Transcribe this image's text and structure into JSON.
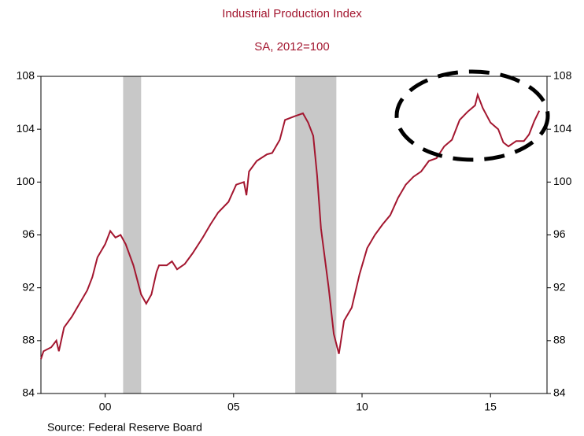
{
  "chart_data": {
    "type": "line",
    "title": "Industrial Production Index",
    "subtitle": "SA, 2012=100",
    "source": "Source:  Federal Reserve Board",
    "color": "#a3162f",
    "shade_color": "#c8c8c8",
    "shaded": [
      [
        2001.2,
        2001.9
      ],
      [
        2007.9,
        2009.5
      ]
    ],
    "x": [
      1998.0,
      1998.1,
      1998.4,
      1998.6,
      1998.7,
      1998.9,
      1999.2,
      1999.5,
      1999.8,
      2000.0,
      2000.2,
      2000.5,
      2000.7,
      2000.9,
      2001.1,
      2001.3,
      2001.6,
      2001.9,
      2002.1,
      2002.3,
      2002.5,
      2002.6,
      2002.9,
      2003.1,
      2003.3,
      2003.6,
      2003.9,
      2004.3,
      2004.6,
      2004.9,
      2005.3,
      2005.6,
      2005.9,
      2006.0,
      2006.1,
      2006.4,
      2006.8,
      2007.0,
      2007.3,
      2007.5,
      2007.9,
      2008.2,
      2008.4,
      2008.6,
      2008.75,
      2008.9,
      2009.2,
      2009.4,
      2009.6,
      2009.8,
      2010.1,
      2010.4,
      2010.7,
      2011.0,
      2011.3,
      2011.6,
      2011.9,
      2012.2,
      2012.5,
      2012.8,
      2013.1,
      2013.4,
      2013.7,
      2014.0,
      2014.3,
      2014.6,
      2014.9,
      2015.0,
      2015.2,
      2015.5,
      2015.8,
      2016.0,
      2016.2,
      2016.5,
      2016.8,
      2017.0,
      2017.2,
      2017.4
    ],
    "values": [
      86.6,
      87.2,
      87.5,
      88.0,
      87.2,
      89.0,
      89.8,
      90.8,
      91.8,
      92.8,
      94.3,
      95.3,
      96.3,
      95.8,
      96.0,
      95.3,
      93.7,
      91.5,
      90.8,
      91.5,
      93.2,
      93.7,
      93.7,
      94.0,
      93.4,
      93.8,
      94.6,
      95.8,
      96.8,
      97.7,
      98.5,
      99.8,
      100.0,
      99.0,
      100.8,
      101.6,
      102.1,
      102.2,
      103.2,
      104.7,
      105.0,
      105.2,
      104.5,
      103.5,
      100.5,
      96.5,
      92.0,
      88.5,
      87.0,
      89.5,
      90.5,
      93.0,
      95.0,
      96.0,
      96.8,
      97.5,
      98.8,
      99.8,
      100.4,
      100.8,
      101.6,
      101.8,
      102.7,
      103.2,
      104.7,
      105.3,
      105.8,
      106.6,
      105.6,
      104.5,
      104.0,
      103.0,
      102.7,
      103.1,
      103.1,
      103.6,
      104.6,
      105.4
    ],
    "xlim": [
      1998.0,
      2017.7
    ],
    "xticks": [
      {
        "value": 2000.5,
        "label": "00"
      },
      {
        "value": 2005.5,
        "label": "05"
      },
      {
        "value": 2010.5,
        "label": "10"
      },
      {
        "value": 2015.5,
        "label": "15"
      }
    ],
    "ylim": [
      84,
      108
    ],
    "yticks": [
      84,
      88,
      92,
      96,
      100,
      104,
      108
    ]
  }
}
